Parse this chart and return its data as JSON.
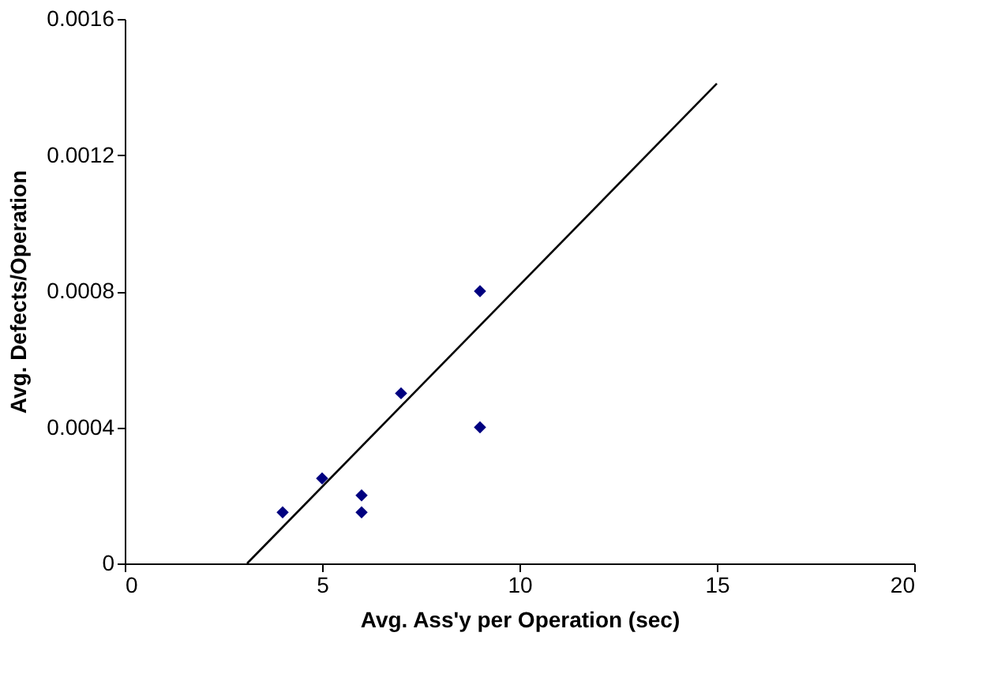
{
  "chart_data": {
    "type": "scatter",
    "xlabel": "Avg. Ass'y per Operation (sec)",
    "ylabel": "Avg. Defects/Operation",
    "series": [
      {
        "color": "#000080",
        "marker": "diamond",
        "x": [
          4,
          5,
          6,
          6,
          7,
          9,
          9
        ],
        "values": [
          0.00015,
          0.00025,
          0.0002,
          0.00015,
          0.0005,
          0.0008,
          0.0004
        ]
      },
      {
        "type": "line",
        "color": "#000000",
        "marker": "none",
        "line_style": "solid",
        "x": [
          3.1,
          15
        ],
        "values": [
          0,
          0.00141
        ]
      }
    ],
    "xlim": [
      0,
      20
    ],
    "xticks": [
      0,
      5,
      10,
      15,
      20
    ],
    "ylim": [
      0,
      0.0016
    ],
    "yticks": [
      0,
      0.0004,
      0.0008,
      0.0012,
      0.0016
    ],
    "grid": false
  }
}
